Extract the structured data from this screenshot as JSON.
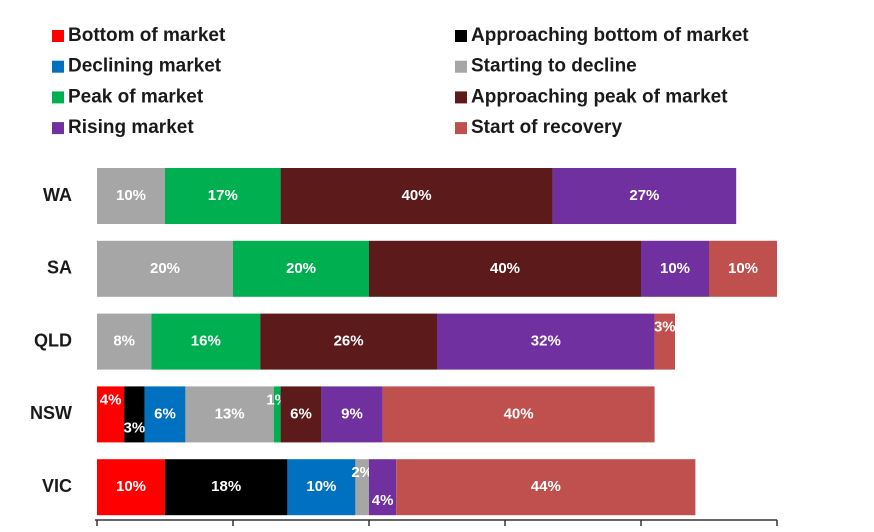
{
  "chart_data": {
    "type": "stacked-bar-horizontal",
    "categories": [
      "WA",
      "SA",
      "QLD",
      "NSW",
      "VIC"
    ],
    "xlim": [
      0,
      100
    ],
    "xticks": [
      0,
      20,
      40,
      60,
      80,
      100
    ],
    "series": [
      {
        "name": "Bottom of market",
        "color": "#ff0000",
        "values": [
          null,
          null,
          null,
          4,
          10
        ],
        "value_labels": [
          null,
          null,
          null,
          "4%",
          "10%"
        ]
      },
      {
        "name": "Approaching bottom of market",
        "color": "#000000",
        "values": [
          null,
          null,
          null,
          3,
          18
        ],
        "value_labels": [
          null,
          null,
          null,
          "3%",
          "18%"
        ]
      },
      {
        "name": "Declining market",
        "color": "#0070c0",
        "values": [
          null,
          null,
          null,
          6,
          10
        ],
        "value_labels": [
          null,
          null,
          null,
          "6%",
          "10%"
        ]
      },
      {
        "name": "Starting to decline",
        "color": "#a6a6a6",
        "values": [
          10,
          20,
          8,
          13,
          2
        ],
        "value_labels": [
          "10%",
          "20%",
          "8%",
          "13%",
          "2%"
        ]
      },
      {
        "name": "Peak of market",
        "color": "#00b050",
        "values": [
          17,
          20,
          16,
          1,
          null
        ],
        "value_labels": [
          "17%",
          "20%",
          "16%",
          "1%",
          null
        ]
      },
      {
        "name": "Approaching peak of market",
        "color": "#5c1a1a",
        "values": [
          40,
          40,
          26,
          6,
          null
        ],
        "value_labels": [
          "40%",
          "40%",
          "26%",
          "6%",
          null
        ]
      },
      {
        "name": "Rising market",
        "color": "#7030a0",
        "values": [
          27,
          10,
          32,
          9,
          4
        ],
        "value_labels": [
          "27%",
          "10%",
          "32%",
          "9%",
          "4%"
        ]
      },
      {
        "name": "Start of recovery",
        "color": "#c0504d",
        "values": [
          null,
          10,
          3,
          40,
          44
        ],
        "value_labels": [
          null,
          "10%",
          "3%",
          "40%",
          "44%"
        ]
      }
    ]
  }
}
